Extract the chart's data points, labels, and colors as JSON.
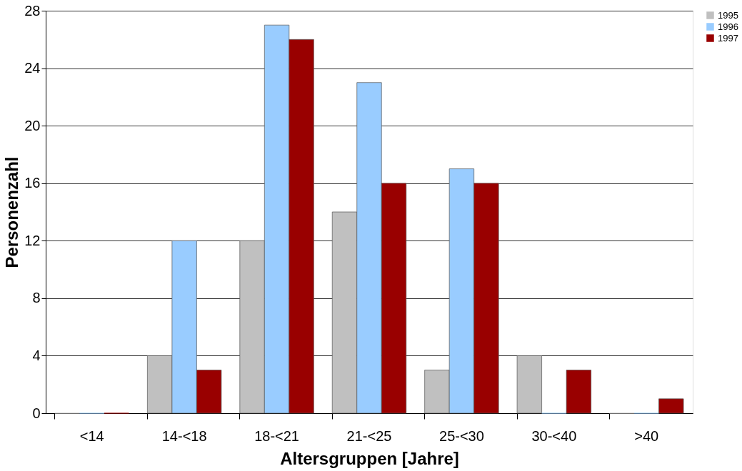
{
  "chart_data": {
    "type": "bar",
    "xlabel": "Altersgruppen [Jahre]",
    "ylabel": "Personenzahl",
    "categories": [
      "<14",
      "14-<18",
      "18-<21",
      "21-<25",
      "25-<30",
      "30-<40",
      ">40"
    ],
    "series": [
      {
        "name": "1995",
        "color": "#c0c0c0",
        "values": [
          0,
          4,
          12,
          14,
          3,
          4,
          0
        ]
      },
      {
        "name": "1996",
        "color": "#99ccff",
        "values": [
          0,
          12,
          27,
          23,
          17,
          0,
          0
        ]
      },
      {
        "name": "1997",
        "color": "#990000",
        "values": [
          0,
          3,
          26,
          16,
          16,
          3,
          1
        ]
      }
    ],
    "ylim": [
      0,
      28
    ],
    "yticks": [
      0,
      4,
      8,
      12,
      16,
      20,
      24,
      28
    ],
    "grid": "y",
    "legend": "right"
  }
}
